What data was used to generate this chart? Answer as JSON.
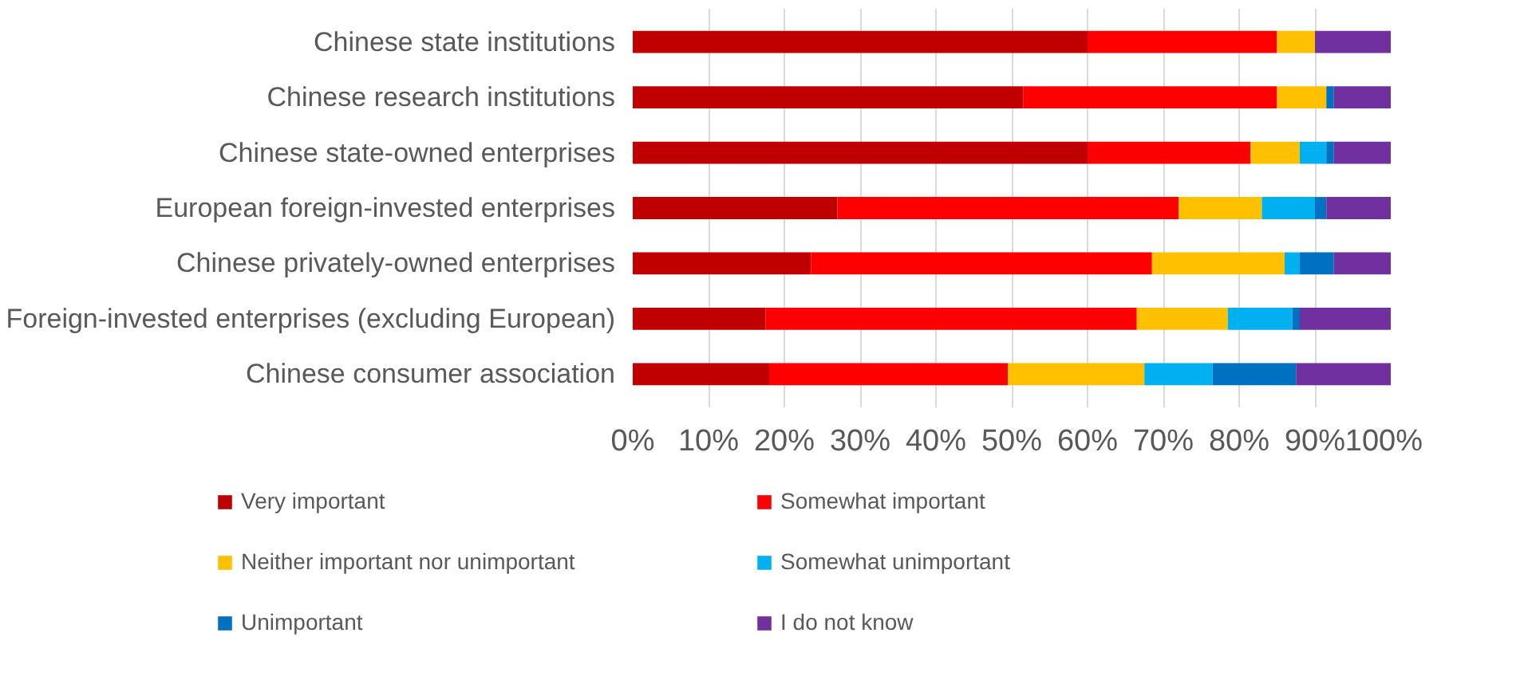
{
  "chart_data": {
    "type": "bar",
    "orientation": "horizontal",
    "stacked": true,
    "categories": [
      "Chinese state institutions",
      "Chinese research institutions",
      "Chinese state-owned enterprises",
      "European foreign-invested enterprises",
      "Chinese privately-owned enterprises",
      "Foreign-invested enterprises (excluding European)",
      "Chinese consumer association"
    ],
    "series": [
      {
        "name": "Very important",
        "color": "#c00000",
        "values": [
          60,
          51.5,
          60,
          27,
          23.5,
          17.5,
          18
        ]
      },
      {
        "name": "Somewhat important",
        "color": "#ff0000",
        "values": [
          25,
          33.5,
          21.5,
          45,
          45,
          49,
          31.5
        ]
      },
      {
        "name": "Neither important nor unimportant",
        "color": "#ffc000",
        "values": [
          5,
          6.5,
          6.5,
          11,
          17.5,
          12,
          18
        ]
      },
      {
        "name": "Somewhat unimportant",
        "color": "#00b0f0",
        "values": [
          0,
          0,
          3.5,
          7,
          2,
          8.5,
          9
        ]
      },
      {
        "name": "Unimportant",
        "color": "#0070c0",
        "values": [
          0,
          1,
          1,
          1.5,
          4.5,
          1,
          11
        ]
      },
      {
        "name": "I do not know",
        "color": "#7030a0",
        "values": [
          10,
          7.5,
          7.5,
          8.5,
          7.5,
          12,
          12.5
        ]
      }
    ],
    "xlim": [
      0,
      100
    ],
    "xticks": [
      {
        "value": 0,
        "label": "0%"
      },
      {
        "value": 10,
        "label": "10%"
      },
      {
        "value": 20,
        "label": "20%"
      },
      {
        "value": 30,
        "label": "30%"
      },
      {
        "value": 40,
        "label": "40%"
      },
      {
        "value": 50,
        "label": "50%"
      },
      {
        "value": 60,
        "label": "60%"
      },
      {
        "value": 70,
        "label": "70%"
      },
      {
        "value": 80,
        "label": "80%"
      },
      {
        "value": 90,
        "label": "90%"
      },
      {
        "value": 100,
        "label": "100%"
      }
    ],
    "grid": "x",
    "legend": "bottom"
  }
}
